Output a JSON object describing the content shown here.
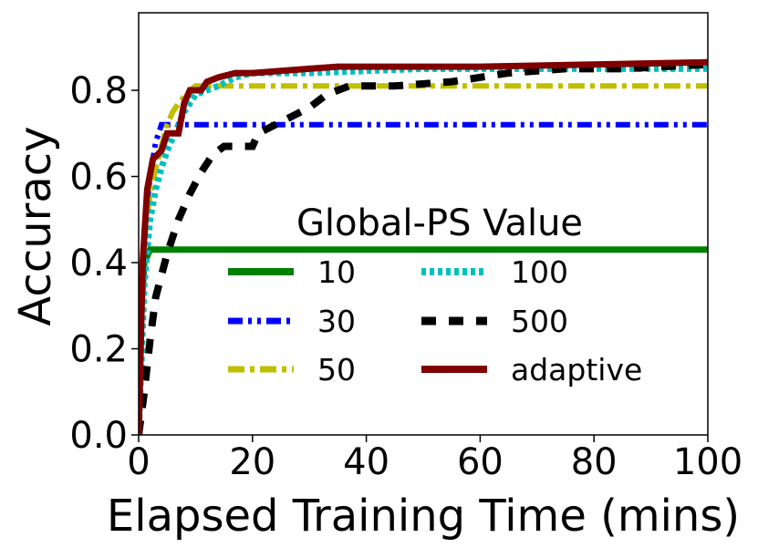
{
  "chart_data": {
    "type": "line",
    "xlabel": "Elapsed Training Time (mins)",
    "ylabel": "Accuracy",
    "xlim": [
      0,
      100
    ],
    "ylim": [
      0,
      0.98
    ],
    "xticks": [
      0,
      20,
      40,
      60,
      80,
      100
    ],
    "xtick_labels": [
      "0",
      "20",
      "40",
      "60",
      "80",
      "100"
    ],
    "yticks": [
      0.0,
      0.2,
      0.4,
      0.6,
      0.8
    ],
    "ytick_labels": [
      "0.0",
      "0.2",
      "0.4",
      "0.6",
      "0.8"
    ],
    "grid": false,
    "legend": {
      "title": "Global-PS Value",
      "placement": "center-right",
      "columns": 2
    },
    "series": [
      {
        "name": "10",
        "color": "#008000",
        "style": "solid",
        "points": [
          [
            0,
            0.0
          ],
          [
            0.5,
            0.3
          ],
          [
            1,
            0.4
          ],
          [
            2,
            0.43
          ],
          [
            100,
            0.43
          ]
        ]
      },
      {
        "name": "30",
        "color": "#0000ff",
        "style": "dashdotdot",
        "points": [
          [
            0,
            0.0
          ],
          [
            0.5,
            0.3
          ],
          [
            1,
            0.48
          ],
          [
            2,
            0.6
          ],
          [
            3,
            0.68
          ],
          [
            4,
            0.72
          ],
          [
            100,
            0.72
          ]
        ]
      },
      {
        "name": "50",
        "color": "#bfbf00",
        "style": "dashdot",
        "points": [
          [
            0,
            0.0
          ],
          [
            0.5,
            0.3
          ],
          [
            1,
            0.45
          ],
          [
            2,
            0.56
          ],
          [
            3,
            0.62
          ],
          [
            4,
            0.67
          ],
          [
            5,
            0.72
          ],
          [
            6,
            0.75
          ],
          [
            7,
            0.77
          ],
          [
            9,
            0.8
          ],
          [
            10,
            0.81
          ],
          [
            100,
            0.81
          ]
        ]
      },
      {
        "name": "100",
        "color": "#00bfbf",
        "style": "dotted",
        "points": [
          [
            0,
            0.0
          ],
          [
            1,
            0.35
          ],
          [
            2,
            0.5
          ],
          [
            3,
            0.57
          ],
          [
            4,
            0.62
          ],
          [
            5,
            0.66
          ],
          [
            6,
            0.69
          ],
          [
            7,
            0.72
          ],
          [
            8,
            0.75
          ],
          [
            9,
            0.77
          ],
          [
            10,
            0.79
          ],
          [
            12,
            0.8
          ],
          [
            14,
            0.81
          ],
          [
            17,
            0.83
          ],
          [
            20,
            0.84
          ],
          [
            30,
            0.84
          ],
          [
            50,
            0.85
          ],
          [
            100,
            0.85
          ]
        ]
      },
      {
        "name": "500",
        "color": "#000000",
        "style": "dashed",
        "points": [
          [
            0,
            0.0
          ],
          [
            1,
            0.1
          ],
          [
            2,
            0.22
          ],
          [
            3,
            0.32
          ],
          [
            5,
            0.42
          ],
          [
            7,
            0.5
          ],
          [
            9,
            0.56
          ],
          [
            11,
            0.61
          ],
          [
            13,
            0.65
          ],
          [
            15,
            0.67
          ],
          [
            20,
            0.67
          ],
          [
            21,
            0.7
          ],
          [
            24,
            0.72
          ],
          [
            27,
            0.74
          ],
          [
            30,
            0.76
          ],
          [
            33,
            0.79
          ],
          [
            37,
            0.81
          ],
          [
            45,
            0.81
          ],
          [
            55,
            0.82
          ],
          [
            65,
            0.84
          ],
          [
            75,
            0.85
          ],
          [
            85,
            0.85
          ],
          [
            100,
            0.86
          ]
        ]
      },
      {
        "name": "adaptive",
        "color": "#800000",
        "style": "solid",
        "points": [
          [
            0,
            0.0
          ],
          [
            0.7,
            0.4
          ],
          [
            1.5,
            0.57
          ],
          [
            2.5,
            0.64
          ],
          [
            4,
            0.66
          ],
          [
            5,
            0.7
          ],
          [
            7,
            0.7
          ],
          [
            8,
            0.77
          ],
          [
            9,
            0.8
          ],
          [
            11,
            0.8
          ],
          [
            12,
            0.82
          ],
          [
            14,
            0.83
          ],
          [
            17,
            0.84
          ],
          [
            20,
            0.84
          ],
          [
            25,
            0.845
          ],
          [
            30,
            0.85
          ],
          [
            35,
            0.855
          ],
          [
            60,
            0.855
          ],
          [
            80,
            0.86
          ],
          [
            100,
            0.865
          ]
        ]
      }
    ]
  }
}
